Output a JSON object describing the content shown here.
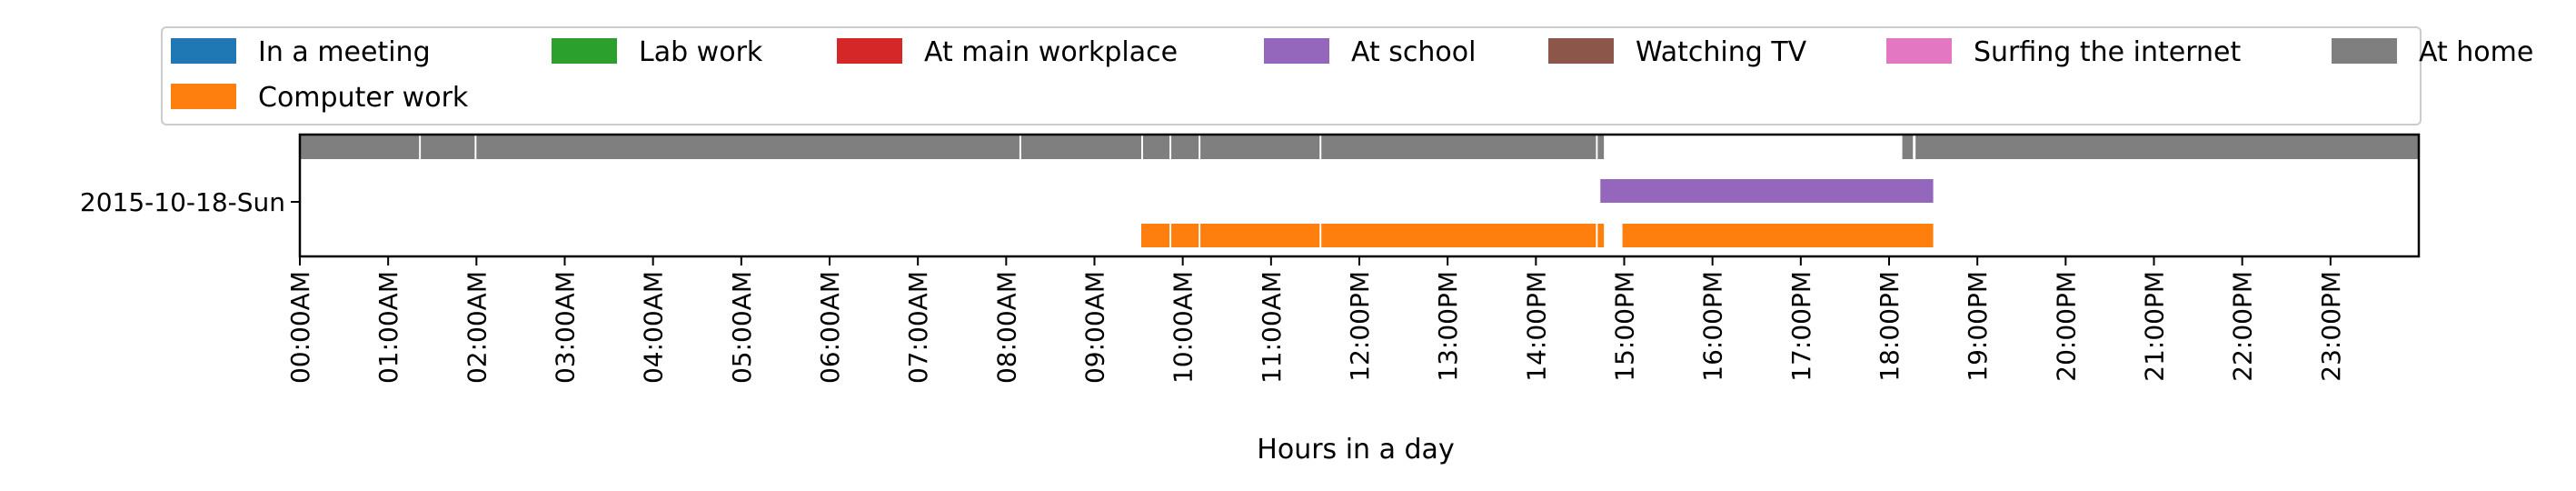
{
  "chart_data": {
    "type": "timeline",
    "xlabel": "Hours in a day",
    "ylabel": "",
    "xlim": [
      0,
      24
    ],
    "y_categories": [
      "2015-10-18-Sun"
    ],
    "x_tick_labels": [
      "00:00AM",
      "01:00AM",
      "02:00AM",
      "03:00AM",
      "04:00AM",
      "05:00AM",
      "06:00AM",
      "07:00AM",
      "08:00AM",
      "09:00AM",
      "10:00AM",
      "11:00AM",
      "12:00PM",
      "13:00PM",
      "14:00PM",
      "15:00PM",
      "16:00PM",
      "17:00PM",
      "18:00PM",
      "19:00PM",
      "20:00PM",
      "21:00PM",
      "22:00PM",
      "23:00PM"
    ],
    "legend_position": "top",
    "grid": false,
    "series": [
      {
        "name": "In a meeting",
        "color": "#1f77b4",
        "row": 0,
        "segments": []
      },
      {
        "name": "Computer work",
        "color": "#ff7f0e",
        "row": 3,
        "segments": [
          [
            9.53,
            9.85
          ],
          [
            9.87,
            10.18
          ],
          [
            10.2,
            11.55
          ],
          [
            11.57,
            14.68
          ],
          [
            14.7,
            14.77
          ],
          [
            14.98,
            18.5
          ]
        ]
      },
      {
        "name": "Lab work",
        "color": "#2ca02c",
        "row": 0,
        "segments": []
      },
      {
        "name": "At main workplace",
        "color": "#d62728",
        "row": 0,
        "segments": []
      },
      {
        "name": "At school",
        "color": "#9467bd",
        "row": 2,
        "segments": [
          [
            14.73,
            18.5
          ]
        ]
      },
      {
        "name": "Watching TV",
        "color": "#8c564b",
        "row": 0,
        "segments": []
      },
      {
        "name": "Surfing the internet",
        "color": "#e377c2",
        "row": 0,
        "segments": []
      },
      {
        "name": "At home",
        "color": "#7f7f7f",
        "row": 1,
        "segments": [
          [
            0.0,
            1.35
          ],
          [
            1.37,
            1.98
          ],
          [
            2.0,
            8.15
          ],
          [
            8.17,
            9.53
          ],
          [
            9.55,
            9.85
          ],
          [
            9.87,
            10.18
          ],
          [
            10.2,
            11.55
          ],
          [
            11.57,
            14.68
          ],
          [
            14.7,
            14.77
          ],
          [
            18.15,
            18.27
          ],
          [
            18.3,
            24.0
          ]
        ]
      }
    ]
  }
}
